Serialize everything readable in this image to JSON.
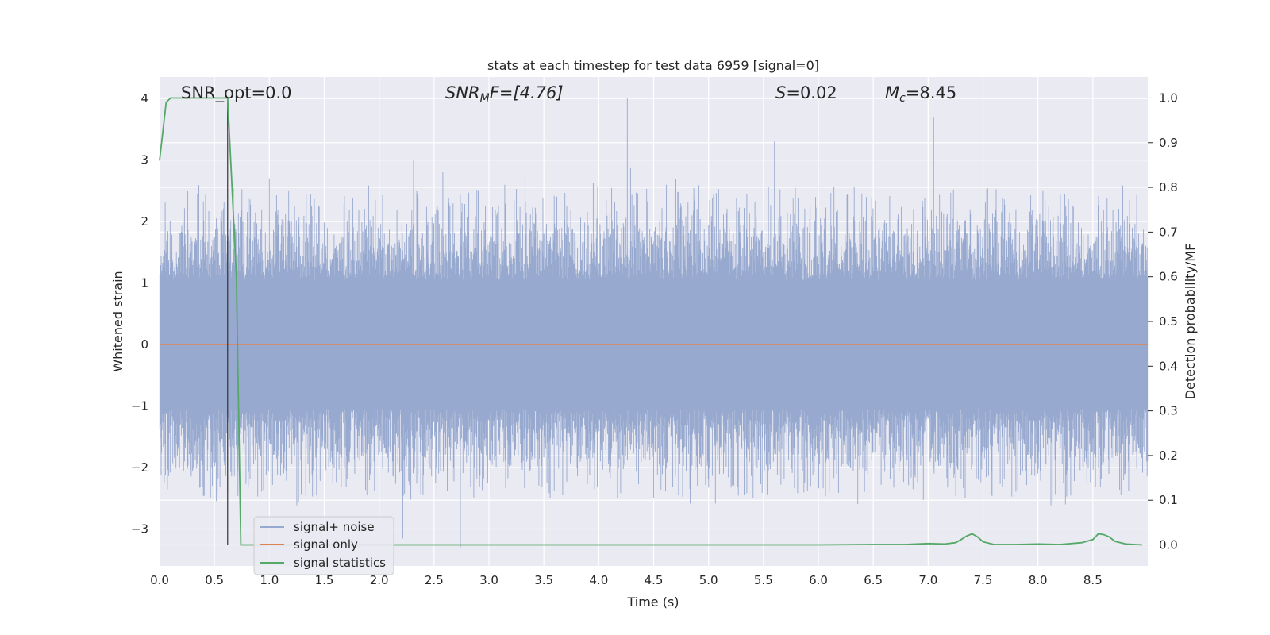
{
  "chart_data": {
    "type": "line",
    "title": "stats at each timestep for test data 6959 [signal=0]",
    "xlabel": "Time (s)",
    "ylabel": "Whitened strain",
    "ylabel_right": "Detection probability/MF",
    "xlim": [
      0.0,
      9.0
    ],
    "ylim": [
      -3.6,
      4.35
    ],
    "ylim_right": [
      -0.047,
      1.047
    ],
    "x_ticks": [
      "0.0",
      "0.5",
      "1.0",
      "1.5",
      "2.0",
      "2.5",
      "3.0",
      "3.5",
      "4.0",
      "4.5",
      "5.0",
      "5.5",
      "6.0",
      "6.5",
      "7.0",
      "7.5",
      "8.0",
      "8.5"
    ],
    "y_ticks": [
      "4",
      "3",
      "2",
      "1",
      "0",
      "−1",
      "−2",
      "−3"
    ],
    "y_tick_values": [
      4,
      3,
      2,
      1,
      0,
      -1,
      -2,
      -3
    ],
    "y_right_ticks": [
      "1.0",
      "0.9",
      "0.8",
      "0.7",
      "0.6",
      "0.5",
      "0.4",
      "0.3",
      "0.2",
      "0.1",
      "0.0"
    ],
    "y_right_tick_values": [
      1.0,
      0.9,
      0.8,
      0.7,
      0.6,
      0.5,
      0.4,
      0.3,
      0.2,
      0.1,
      0.0
    ],
    "grid": true,
    "legend_position": "lower-left",
    "annotations": {
      "snr_opt": "SNR_opt=0.0",
      "snr_mf_main": "SNR",
      "snr_mf_sub": "M",
      "snr_mf_rest": "F=[4.76]",
      "s_main": "S",
      "s_rest": "=0.02",
      "mc_main": "M",
      "mc_sub": "c",
      "mc_rest": "=8.45"
    },
    "marker_line_x": 0.62,
    "series": [
      {
        "name": "signal+ noise",
        "axis": "left",
        "color": "#97a9cf",
        "description_range": [
          -3.3,
          4.0
        ],
        "peaks": [
          {
            "x": 0.62,
            "y": -2.4
          },
          {
            "x": 0.98,
            "y": -3.0
          },
          {
            "x": 1.0,
            "y": 2.7
          },
          {
            "x": 2.58,
            "y": 2.8
          },
          {
            "x": 2.74,
            "y": -3.3
          },
          {
            "x": 4.26,
            "y": 4.0
          },
          {
            "x": 5.6,
            "y": 3.3
          },
          {
            "x": 4.5,
            "y": -2.5
          },
          {
            "x": 6.1,
            "y": -2.4
          },
          {
            "x": 8.25,
            "y": -2.6
          }
        ]
      },
      {
        "name": "signal only",
        "axis": "left",
        "color": "#dd8452",
        "x": [
          0.0,
          9.0
        ],
        "y": [
          0.0,
          0.0
        ]
      },
      {
        "name": "signal statistics",
        "axis": "right",
        "color": "#55a868",
        "x": [
          0.0,
          0.06,
          0.1,
          0.2,
          0.4,
          0.6,
          0.62,
          0.7,
          0.74,
          1.0,
          2.0,
          3.0,
          4.0,
          5.0,
          6.0,
          6.5,
          6.8,
          7.0,
          7.15,
          7.25,
          7.3,
          7.35,
          7.4,
          7.45,
          7.5,
          7.6,
          7.8,
          8.0,
          8.2,
          8.4,
          8.5,
          8.55,
          8.6,
          8.65,
          8.7,
          8.8,
          8.95
        ],
        "y": [
          0.86,
          0.99,
          1.0,
          1.0,
          1.0,
          1.0,
          1.0,
          0.6,
          0.0,
          0.0,
          0.0,
          0.0,
          0.0,
          0.0,
          0.0,
          0.001,
          0.001,
          0.003,
          0.002,
          0.005,
          0.012,
          0.02,
          0.025,
          0.018,
          0.007,
          0.001,
          0.001,
          0.002,
          0.001,
          0.005,
          0.012,
          0.025,
          0.023,
          0.018,
          0.008,
          0.002,
          0.0
        ]
      }
    ]
  },
  "colors": {
    "plot_background": "#eaeaf2",
    "grid": "#ffffff",
    "text": "#262626",
    "marker_line": "#333333"
  }
}
